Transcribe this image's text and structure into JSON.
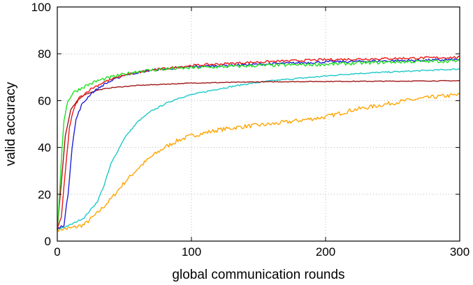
{
  "chart_data": {
    "type": "line",
    "title": "",
    "xlabel": "global communication rounds",
    "ylabel": "valid accuracy",
    "xlim": [
      0,
      300
    ],
    "ylim": [
      0,
      100
    ],
    "xticks": [
      0,
      100,
      200,
      300
    ],
    "yticks": [
      0,
      20,
      40,
      60,
      80,
      100
    ],
    "grid": true,
    "series": [
      {
        "color": "#ffa500",
        "noise": 0.9,
        "points": [
          [
            0,
            5
          ],
          [
            10,
            5.5
          ],
          [
            20,
            7
          ],
          [
            30,
            12
          ],
          [
            40,
            18
          ],
          [
            50,
            25
          ],
          [
            60,
            31
          ],
          [
            70,
            36
          ],
          [
            80,
            40
          ],
          [
            90,
            43
          ],
          [
            100,
            45
          ],
          [
            120,
            47.5
          ],
          [
            140,
            49
          ],
          [
            160,
            50
          ],
          [
            180,
            51.5
          ],
          [
            200,
            53
          ],
          [
            220,
            56
          ],
          [
            240,
            58
          ],
          [
            260,
            60
          ],
          [
            280,
            61.5
          ],
          [
            300,
            62.5
          ]
        ]
      },
      {
        "color": "#20c8c8",
        "noise": 0.3,
        "points": [
          [
            0,
            5
          ],
          [
            10,
            7
          ],
          [
            20,
            10
          ],
          [
            30,
            17
          ],
          [
            35,
            24
          ],
          [
            40,
            33
          ],
          [
            50,
            44
          ],
          [
            60,
            51
          ],
          [
            70,
            55.5
          ],
          [
            80,
            58.5
          ],
          [
            90,
            61
          ],
          [
            100,
            62.5
          ],
          [
            120,
            65
          ],
          [
            140,
            67
          ],
          [
            160,
            68.5
          ],
          [
            180,
            69.5
          ],
          [
            200,
            70.5
          ],
          [
            220,
            71.5
          ],
          [
            240,
            72
          ],
          [
            260,
            72.5
          ],
          [
            280,
            73
          ],
          [
            300,
            73.5
          ]
        ]
      },
      {
        "color": "#a01818",
        "noise": 0.15,
        "points": [
          [
            0,
            5
          ],
          [
            3,
            25
          ],
          [
            6,
            45
          ],
          [
            10,
            56
          ],
          [
            15,
            60
          ],
          [
            20,
            62.5
          ],
          [
            30,
            64.5
          ],
          [
            40,
            65.5
          ],
          [
            60,
            66.5
          ],
          [
            80,
            67
          ],
          [
            100,
            67.5
          ],
          [
            150,
            68
          ],
          [
            200,
            68.2
          ],
          [
            250,
            68.3
          ],
          [
            300,
            68.5
          ]
        ]
      },
      {
        "color": "#2020d8",
        "noise": 0.5,
        "points": [
          [
            0,
            5
          ],
          [
            5,
            7
          ],
          [
            8,
            20
          ],
          [
            11,
            40
          ],
          [
            14,
            52
          ],
          [
            18,
            58
          ],
          [
            25,
            63
          ],
          [
            35,
            67
          ],
          [
            50,
            71
          ],
          [
            70,
            73
          ],
          [
            100,
            74.5
          ],
          [
            150,
            75.5
          ],
          [
            200,
            76.5
          ],
          [
            250,
            77
          ],
          [
            300,
            77.5
          ]
        ]
      },
      {
        "color": "#e81818",
        "noise": 0.5,
        "points": [
          [
            0,
            5
          ],
          [
            3,
            10
          ],
          [
            6,
            30
          ],
          [
            9,
            48
          ],
          [
            12,
            56
          ],
          [
            16,
            61
          ],
          [
            25,
            65
          ],
          [
            35,
            68
          ],
          [
            50,
            71
          ],
          [
            70,
            73
          ],
          [
            100,
            75
          ],
          [
            150,
            76.5
          ],
          [
            200,
            77.5
          ],
          [
            250,
            78
          ],
          [
            300,
            78.5
          ]
        ]
      },
      {
        "color": "#20e020",
        "noise": 0.7,
        "points": [
          [
            0,
            5
          ],
          [
            1,
            12
          ],
          [
            3,
            35
          ],
          [
            5,
            52
          ],
          [
            8,
            60
          ],
          [
            12,
            63.5
          ],
          [
            20,
            66
          ],
          [
            30,
            68.5
          ],
          [
            40,
            70
          ],
          [
            60,
            72.5
          ],
          [
            80,
            73.5
          ],
          [
            100,
            74
          ],
          [
            150,
            75
          ],
          [
            200,
            75.5
          ],
          [
            250,
            76.5
          ],
          [
            300,
            77
          ]
        ]
      }
    ]
  }
}
